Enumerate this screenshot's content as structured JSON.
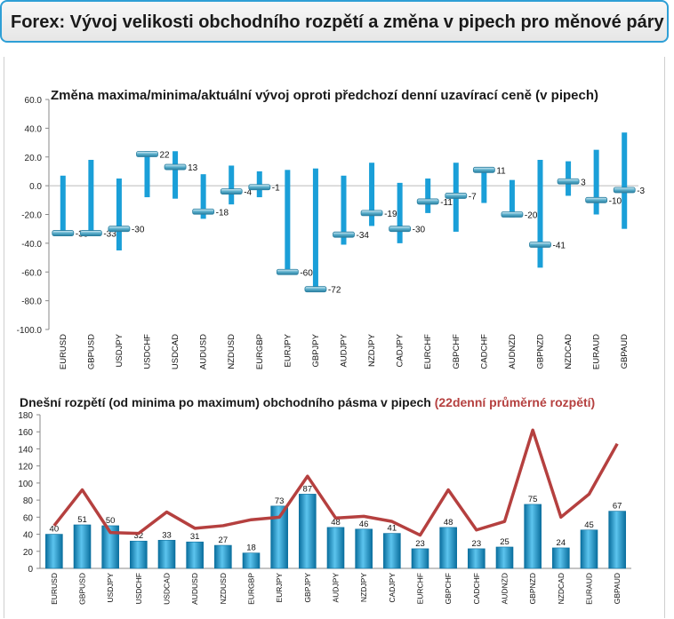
{
  "header": {
    "title": "Forex: Vývoj velikosti obchodního rozpětí a změna v pipech pro měnové páry"
  },
  "colors": {
    "accent": "#2e9fd6",
    "bar": "#1a9fd8",
    "bar_dark": "#0a6f9e",
    "line": "#b5403f",
    "marker": "#5aaecb"
  },
  "chart_data": [
    {
      "type": "bar",
      "title": "Změna maxima/minima/aktuální vývoj oproti předchozí denní uzavírací ceně (v pipech)",
      "categories": [
        "EURUSD",
        "GBPUSD",
        "USDJPY",
        "USDCHF",
        "USDCAD",
        "AUDUSD",
        "NZDUSD",
        "EURGBP",
        "EURJPY",
        "GBPJPY",
        "AUDJPY",
        "NZDJPY",
        "CADJPY",
        "EURCHF",
        "GBPCHF",
        "CADCHF",
        "AUDNZD",
        "GBPNZD",
        "NZDCAD",
        "EURAUD",
        "GBPAUD"
      ],
      "high": [
        7,
        18,
        5,
        24,
        24,
        8,
        14,
        10,
        11,
        12,
        7,
        16,
        2,
        5,
        16,
        12,
        4,
        18,
        17,
        25,
        37
      ],
      "low": [
        -33,
        -34,
        -45,
        -8,
        -9,
        -23,
        -13,
        -8,
        -60,
        -72,
        -41,
        -28,
        -40,
        -19,
        -32,
        -12,
        -22,
        -57,
        -7,
        -20,
        -30
      ],
      "current": [
        -33,
        -33,
        -30,
        22,
        13,
        -18,
        -4,
        -1,
        -60,
        -72,
        -34,
        -19,
        -30,
        -11,
        -7,
        11,
        -20,
        -41,
        3,
        -10,
        -3
      ],
      "ylim": [
        -100,
        60
      ],
      "yticks": [
        "-100.0",
        "-80.0",
        "-60.0",
        "-40.0",
        "-20.0",
        "0.0",
        "20.0",
        "40.0",
        "60.0"
      ]
    },
    {
      "type": "bar",
      "title": "Dnešní rozpětí (od minima po maximum) obchodního pásma v pipech",
      "title_highlight": "(22denní průměrné rozpětí)",
      "categories": [
        "EURUSD",
        "GBPUSD",
        "USDJPY",
        "USDCHF",
        "USDCAD",
        "AUDUSD",
        "NZDUSD",
        "EURGBP",
        "EURJPY",
        "GBPJPY",
        "AUDJPY",
        "NZDJPY",
        "CADJPY",
        "EURCHF",
        "GBPCHF",
        "CADCHF",
        "AUDNZD",
        "GBPNZD",
        "NZDCAD",
        "EURAUD",
        "GBPAUD"
      ],
      "series": [
        {
          "type": "bar",
          "values": [
            40,
            51,
            50,
            32,
            33,
            31,
            27,
            18,
            73,
            87,
            48,
            46,
            41,
            23,
            48,
            23,
            25,
            75,
            24,
            45,
            67
          ]
        },
        {
          "type": "line",
          "values": [
            50,
            92,
            42,
            41,
            66,
            47,
            50,
            57,
            60,
            108,
            59,
            61,
            55,
            39,
            92,
            45,
            55,
            162,
            60,
            87,
            146
          ]
        }
      ],
      "ylim": [
        0,
        180
      ],
      "yticks": [
        "0",
        "20",
        "40",
        "60",
        "80",
        "100",
        "120",
        "140",
        "160",
        "180"
      ]
    }
  ]
}
